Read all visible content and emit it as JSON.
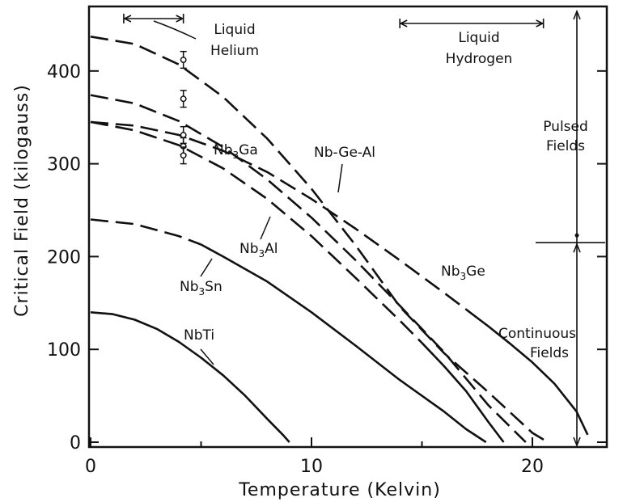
{
  "chart_data": {
    "type": "line",
    "xlabel": "Temperature (Kelvin)",
    "ylabel": "Critical Field (kilogauss)",
    "xlim": [
      0,
      23
    ],
    "ylim": [
      0,
      460
    ],
    "xticks": [
      0,
      10,
      20
    ],
    "yticks": [
      0,
      100,
      200,
      300,
      400
    ],
    "grid": false,
    "series": [
      {
        "name": "Nb-Ge-Al",
        "base": "Nb-Ge-Al",
        "sub": "",
        "suffix": "",
        "style": "dashed",
        "x": [
          0,
          2,
          4,
          6,
          8,
          10,
          12,
          14,
          16,
          18,
          20,
          20.7
        ],
        "y": [
          437,
          429,
          407,
          372,
          327,
          273,
          212,
          146,
          96,
          54,
          10,
          0
        ]
      },
      {
        "name": "Nb3Ge",
        "base": "Nb",
        "sub": "3",
        "suffix": "Ge",
        "style": "dashed-solid",
        "dash_until": 17,
        "x": [
          0,
          2,
          4,
          6,
          8,
          10,
          12,
          14,
          16,
          17,
          18,
          19,
          20,
          21,
          22,
          22.5
        ],
        "y": [
          345,
          341,
          331,
          314,
          291,
          262,
          230,
          196,
          161,
          143,
          125,
          106,
          86,
          63,
          33,
          8
        ]
      },
      {
        "name": "Nb3Ga",
        "base": "Nb",
        "sub": "3",
        "suffix": "Ga",
        "style": "dashed",
        "x": [
          0,
          2,
          4,
          6,
          8,
          10,
          12,
          14,
          16,
          18,
          19.7
        ],
        "y": [
          374,
          365,
          346,
          318,
          283,
          242,
          196,
          147,
          97,
          40,
          0
        ]
      },
      {
        "name": "Nb3Al",
        "base": "Nb",
        "sub": "3",
        "suffix": "Al",
        "style": "dashed-solid",
        "dash_until": 15,
        "x": [
          0,
          2,
          4,
          6,
          8,
          10,
          12,
          14,
          15,
          16,
          17,
          18,
          18.7
        ],
        "y": [
          345,
          336,
          320,
          295,
          262,
          222,
          177,
          131,
          107,
          82,
          55,
          22,
          0
        ]
      },
      {
        "name": "Nb3Sn",
        "base": "Nb",
        "sub": "3",
        "suffix": "Sn",
        "style": "dashed-solid",
        "dash_until": 5,
        "x": [
          0,
          2,
          4,
          5,
          6,
          8,
          10,
          12,
          14,
          16,
          17,
          17.9
        ],
        "y": [
          240,
          235,
          222,
          213,
          200,
          173,
          140,
          104,
          67,
          33,
          14,
          0
        ]
      },
      {
        "name": "NbTi",
        "base": "NbTi",
        "sub": "",
        "suffix": "",
        "style": "solid",
        "x": [
          0,
          1,
          2,
          3,
          4,
          5,
          6,
          7,
          8,
          8.7,
          9.0
        ],
        "y": [
          140,
          138,
          132,
          122,
          108,
          91,
          72,
          50,
          25,
          8,
          0
        ]
      }
    ],
    "data_points": [
      {
        "x": 4.2,
        "y": 412,
        "err": 9
      },
      {
        "x": 4.2,
        "y": 370,
        "err": 9
      },
      {
        "x": 4.2,
        "y": 331,
        "err": 9
      },
      {
        "x": 4.2,
        "y": 319,
        "err": 9
      },
      {
        "x": 4.2,
        "y": 309,
        "err": 9
      }
    ],
    "annotations": {
      "liquid_helium": {
        "line1": "Liquid",
        "line2": "Helium",
        "range": [
          1.5,
          4.2
        ]
      },
      "liquid_hydrogen": {
        "line1": "Liquid",
        "line2": "Hydrogen",
        "range": [
          14,
          20.5
        ]
      },
      "pulsed": {
        "line1": "Pulsed",
        "line2": "Fields",
        "range": [
          220,
          460
        ]
      },
      "continuous": {
        "line1": "Continuous",
        "line2": "Fields",
        "range": [
          0,
          220
        ]
      },
      "field_divider": 215
    }
  }
}
